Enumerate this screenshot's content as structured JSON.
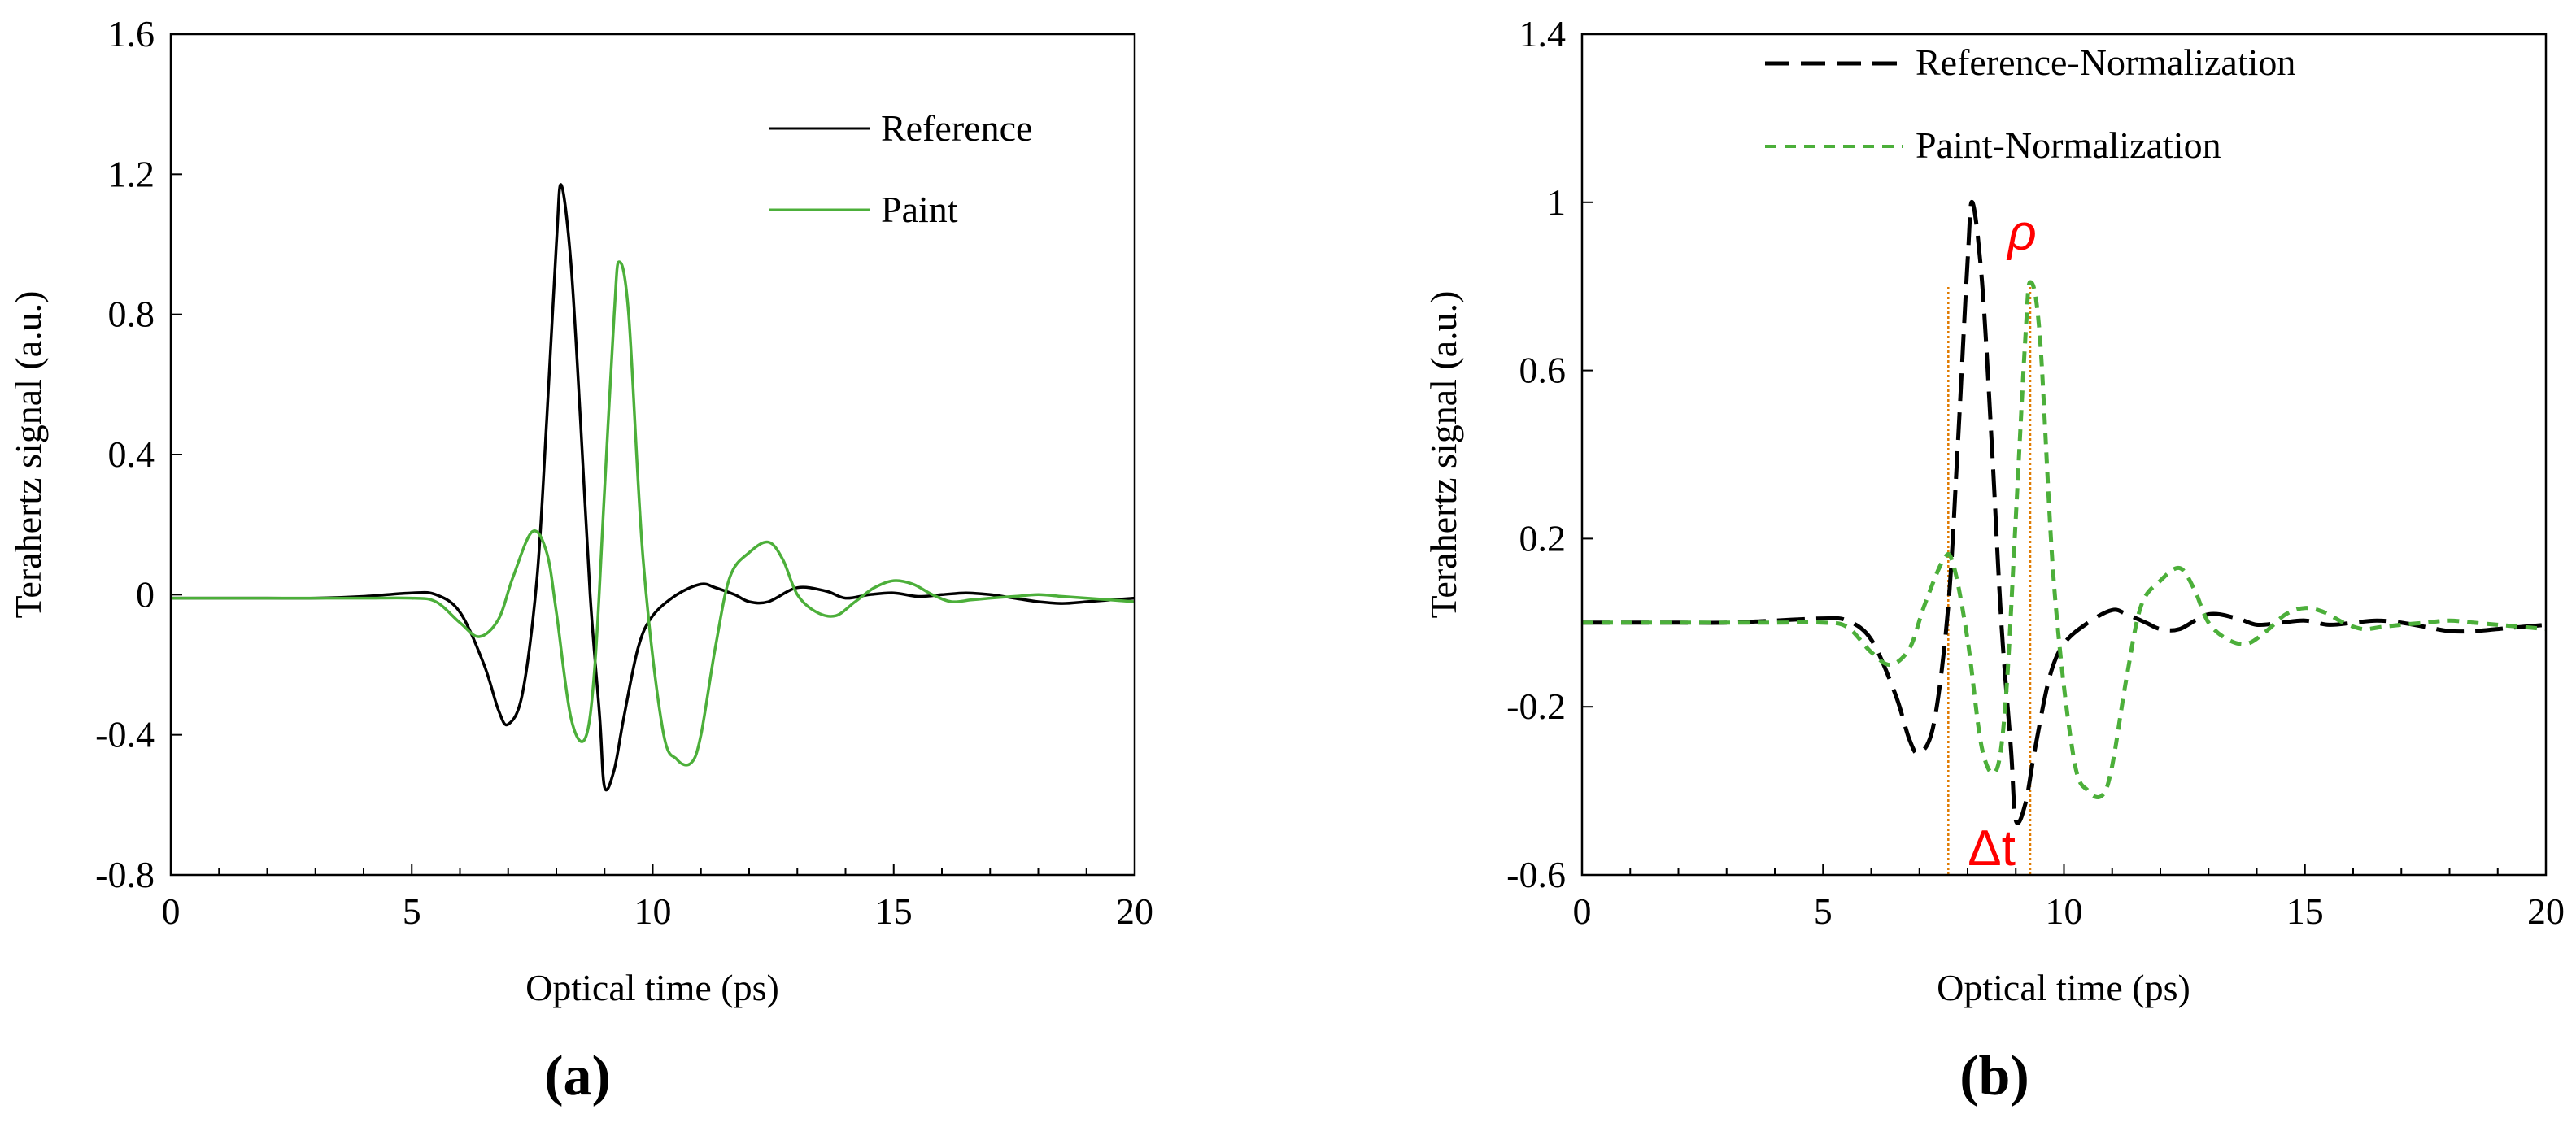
{
  "figure": {
    "panels": [
      {
        "label": "(a)"
      },
      {
        "label": "(b)"
      }
    ]
  },
  "chart_data": [
    {
      "type": "line",
      "panel": "(a)",
      "title": "",
      "xlabel": "Optical time (ps)",
      "ylabel": "Terahertz signal (a.u.)",
      "xlim": [
        0,
        20
      ],
      "ylim": [
        -0.8,
        1.6
      ],
      "xticks": [
        0,
        5,
        10,
        15,
        20
      ],
      "xtick_labels": [
        "0",
        "5",
        "10",
        "15",
        "20"
      ],
      "yticks": [
        -0.8,
        -0.4,
        0,
        0.4,
        0.8,
        1.2,
        1.6
      ],
      "ytick_labels": [
        "-0.8",
        "-0.4",
        "0",
        "0.4",
        "0.8",
        "1.2",
        "1.6"
      ],
      "grid": false,
      "legend_position": "top-right",
      "series": [
        {
          "name": "Reference",
          "color": "#000000",
          "dash": "solid",
          "x": [
            0,
            1,
            2,
            3,
            4,
            5,
            5.5,
            6.0,
            6.5,
            6.8,
            7.0,
            7.3,
            7.6,
            7.8,
            8.0,
            8.1,
            8.3,
            8.5,
            8.7,
            8.9,
            9.0,
            9.2,
            9.4,
            9.7,
            10.0,
            10.5,
            11.0,
            11.3,
            11.7,
            12.0,
            12.4,
            13.0,
            13.6,
            14.0,
            14.5,
            15.0,
            15.5,
            16.0,
            16.5,
            17.0,
            17.5,
            18.0,
            18.5,
            19.0,
            19.5,
            20.0
          ],
          "y": [
            -0.01,
            -0.01,
            -0.01,
            -0.01,
            -0.005,
            0.005,
            0.0,
            -0.05,
            -0.2,
            -0.33,
            -0.37,
            -0.28,
            0.05,
            0.5,
            1.0,
            1.17,
            0.95,
            0.5,
            0.0,
            -0.35,
            -0.55,
            -0.5,
            -0.35,
            -0.15,
            -0.06,
            0.0,
            0.03,
            0.02,
            0.0,
            -0.02,
            -0.02,
            0.02,
            0.01,
            -0.01,
            0.0,
            0.005,
            -0.005,
            0.0,
            0.005,
            0.0,
            -0.01,
            -0.02,
            -0.025,
            -0.02,
            -0.015,
            -0.01
          ]
        },
        {
          "name": "Paint",
          "color": "#4caf3a",
          "dash": "solid",
          "x": [
            0,
            1,
            2,
            3,
            4,
            5,
            5.5,
            6.0,
            6.4,
            6.8,
            7.1,
            7.5,
            7.8,
            8.0,
            8.3,
            8.6,
            8.8,
            9.0,
            9.2,
            9.3,
            9.5,
            9.8,
            10.2,
            10.5,
            10.8,
            11.0,
            11.3,
            11.6,
            12.0,
            12.4,
            12.7,
            13.0,
            13.4,
            13.8,
            14.2,
            14.6,
            15.0,
            15.4,
            15.8,
            16.2,
            16.6,
            17.0,
            17.5,
            18.0,
            18.5,
            19.0,
            19.5,
            20.0
          ],
          "y": [
            -0.01,
            -0.01,
            -0.01,
            -0.01,
            -0.01,
            -0.01,
            -0.02,
            -0.08,
            -0.12,
            -0.07,
            0.05,
            0.18,
            0.12,
            -0.05,
            -0.35,
            -0.41,
            -0.2,
            0.3,
            0.8,
            0.95,
            0.8,
            0.1,
            -0.38,
            -0.47,
            -0.48,
            -0.4,
            -0.15,
            0.05,
            0.12,
            0.15,
            0.1,
            0.0,
            -0.05,
            -0.06,
            -0.02,
            0.02,
            0.04,
            0.03,
            0.0,
            -0.02,
            -0.015,
            -0.01,
            -0.005,
            0.0,
            -0.005,
            -0.01,
            -0.015,
            -0.02
          ]
        }
      ]
    },
    {
      "type": "line",
      "panel": "(b)",
      "title": "",
      "xlabel": "Optical time (ps)",
      "ylabel": "Terahertz signal (a.u.)",
      "xlim": [
        0,
        20
      ],
      "ylim": [
        -0.6,
        1.4
      ],
      "xticks": [
        0,
        5,
        10,
        15,
        20
      ],
      "xtick_labels": [
        "0",
        "5",
        "10",
        "15",
        "20"
      ],
      "yticks": [
        -0.6,
        -0.2,
        0.2,
        0.6,
        1.0,
        1.4
      ],
      "ytick_labels": [
        "-0.6",
        "-0.2",
        "0.2",
        "0.6",
        "1",
        "1.4"
      ],
      "grid": false,
      "legend_position": "top-center",
      "series": [
        {
          "name": "Reference-Normalization",
          "color": "#000000",
          "dash": "long-dash",
          "x": [
            0,
            1,
            2,
            3,
            4,
            5,
            5.5,
            6.0,
            6.5,
            6.8,
            7.0,
            7.3,
            7.6,
            7.8,
            8.0,
            8.1,
            8.3,
            8.5,
            8.7,
            8.9,
            9.0,
            9.2,
            9.4,
            9.7,
            10.0,
            10.5,
            11.0,
            11.3,
            11.7,
            12.0,
            12.4,
            13.0,
            13.6,
            14.0,
            14.5,
            15.0,
            15.5,
            16.0,
            16.5,
            17.0,
            17.5,
            18.0,
            18.5,
            19.0,
            19.5,
            20.0
          ],
          "y": [
            0.0,
            0.0,
            0.0,
            0.0,
            0.005,
            0.01,
            0.005,
            -0.04,
            -0.17,
            -0.28,
            -0.31,
            -0.24,
            0.04,
            0.43,
            0.86,
            1.0,
            0.81,
            0.43,
            0.0,
            -0.3,
            -0.47,
            -0.43,
            -0.3,
            -0.13,
            -0.05,
            0.0,
            0.03,
            0.02,
            0.0,
            -0.015,
            -0.015,
            0.02,
            0.01,
            -0.005,
            0.0,
            0.005,
            -0.005,
            0.0,
            0.005,
            0.0,
            -0.01,
            -0.02,
            -0.02,
            -0.015,
            -0.01,
            -0.005
          ]
        },
        {
          "name": "Paint-Normalization",
          "color": "#4caf3a",
          "dash": "short-dash",
          "x": [
            0,
            1,
            2,
            3,
            4,
            5,
            5.5,
            6.0,
            6.4,
            6.8,
            7.1,
            7.5,
            7.7,
            8.0,
            8.3,
            8.6,
            8.8,
            9.0,
            9.2,
            9.3,
            9.5,
            9.8,
            10.2,
            10.5,
            10.8,
            11.0,
            11.3,
            11.6,
            12.0,
            12.4,
            12.7,
            13.0,
            13.4,
            13.8,
            14.2,
            14.6,
            15.0,
            15.4,
            15.8,
            16.2,
            16.6,
            17.0,
            17.5,
            18.0,
            18.5,
            19.0,
            19.5,
            20.0
          ],
          "y": [
            0.0,
            0.0,
            0.0,
            0.0,
            0.0,
            0.0,
            -0.01,
            -0.07,
            -0.1,
            -0.06,
            0.04,
            0.15,
            0.14,
            -0.04,
            -0.3,
            -0.35,
            -0.17,
            0.25,
            0.68,
            0.81,
            0.68,
            0.08,
            -0.32,
            -0.4,
            -0.41,
            -0.34,
            -0.13,
            0.04,
            0.1,
            0.13,
            0.08,
            0.0,
            -0.04,
            -0.05,
            -0.02,
            0.02,
            0.035,
            0.025,
            0.0,
            -0.015,
            -0.01,
            -0.005,
            0.0,
            0.005,
            0.0,
            -0.005,
            -0.01,
            -0.015
          ]
        }
      ],
      "annotations": [
        {
          "text": "ρ",
          "x": 9.3,
          "y": 0.81
        },
        {
          "text": "Δt",
          "x": 8.5,
          "y": -0.6
        }
      ],
      "vlines": [
        {
          "x": 7.6,
          "color": "#e07b00"
        },
        {
          "x": 9.3,
          "color": "#e07b00"
        }
      ]
    }
  ]
}
